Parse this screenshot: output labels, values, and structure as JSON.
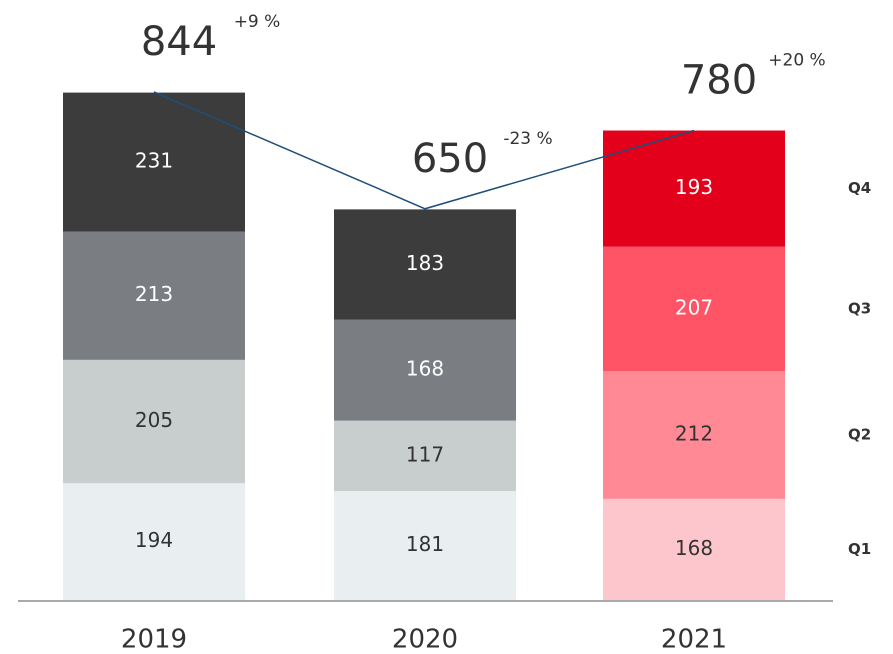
{
  "chart_data": {
    "type": "stacked_bar",
    "categories": [
      "2019",
      "2020",
      "2021"
    ],
    "series": [
      {
        "name": "Q1",
        "values": [
          194,
          181,
          168
        ],
        "colors": [
          "#e9eef1",
          "#e9eef1",
          "#fdc5cc"
        ]
      },
      {
        "name": "Q2",
        "values": [
          205,
          117,
          212
        ],
        "colors": [
          "#c8cdcd",
          "#c8cdcd",
          "#ff8a96"
        ]
      },
      {
        "name": "Q3",
        "values": [
          213,
          168,
          207
        ],
        "colors": [
          "#7a7e82",
          "#7a7e82",
          "#ff5366"
        ]
      },
      {
        "name": "Q4",
        "values": [
          231,
          183,
          193
        ],
        "colors": [
          "#3c3c3c",
          "#3c3c3c",
          "#e2001a"
        ]
      }
    ],
    "totals": [
      844,
      650,
      780
    ],
    "changes": [
      9,
      -23,
      20
    ],
    "change_labels": [
      "+9 %",
      "-23 %",
      "+20 %"
    ],
    "line_color": "#1f4e79"
  }
}
